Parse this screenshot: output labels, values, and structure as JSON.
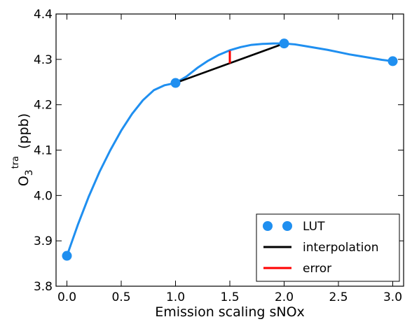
{
  "chart_data": {
    "type": "line",
    "title": "",
    "xlabel": "Emission scaling sNOx",
    "ylabel": {
      "base": "O",
      "subscript": "3",
      "superscript": "tra",
      "unit": "(ppb)"
    },
    "xlim": [
      -0.1,
      3.1
    ],
    "ylim": [
      3.8,
      4.4
    ],
    "xticks": [
      0.0,
      0.5,
      1.0,
      1.5,
      2.0,
      2.5,
      3.0
    ],
    "xtick_labels": [
      "0.0",
      "0.5",
      "1.0",
      "1.5",
      "2.0",
      "2.5",
      "3.0"
    ],
    "yticks": [
      3.8,
      3.9,
      4.0,
      4.1,
      4.2,
      4.3,
      4.4
    ],
    "ytick_labels": [
      "3.8",
      "3.9",
      "4.0",
      "4.1",
      "4.2",
      "4.3",
      "4.4"
    ],
    "grid": false,
    "legend_position": "lower-right",
    "series": [
      {
        "name": "",
        "kind": "line",
        "color": "#1f8ff0",
        "x": [
          0.0,
          0.1,
          0.2,
          0.3,
          0.4,
          0.5,
          0.6,
          0.7,
          0.8,
          0.9,
          1.0,
          1.1,
          1.2,
          1.3,
          1.4,
          1.5,
          1.6,
          1.7,
          1.8,
          1.9,
          2.0,
          2.1,
          2.2,
          2.3,
          2.4,
          2.5,
          2.6,
          2.7,
          2.8,
          2.9,
          3.0
        ],
        "y": [
          3.867,
          3.935,
          3.997,
          4.052,
          4.1,
          4.143,
          4.18,
          4.21,
          4.232,
          4.243,
          4.248,
          4.262,
          4.281,
          4.297,
          4.31,
          4.32,
          4.327,
          4.332,
          4.334,
          4.335,
          4.335,
          4.333,
          4.329,
          4.325,
          4.321,
          4.316,
          4.311,
          4.307,
          4.303,
          4.299,
          4.296
        ]
      },
      {
        "name": "LUT",
        "kind": "markers",
        "color": "#1f8ff0",
        "x": [
          0.0,
          1.0,
          2.0,
          3.0
        ],
        "y": [
          3.867,
          4.248,
          4.335,
          4.296
        ]
      },
      {
        "name": "interpolation",
        "kind": "line",
        "color": "#000000",
        "x": [
          1.0,
          2.0
        ],
        "y": [
          4.248,
          4.335
        ]
      },
      {
        "name": "error",
        "kind": "line",
        "color": "#ff0000",
        "x": [
          1.5,
          1.5
        ],
        "y": [
          4.291,
          4.319
        ]
      }
    ],
    "legend": [
      {
        "label": "LUT",
        "style": "markers",
        "color": "#1f8ff0"
      },
      {
        "label": "interpolation",
        "style": "line",
        "color": "#000000"
      },
      {
        "label": "error",
        "style": "line",
        "color": "#ff0000"
      }
    ]
  }
}
